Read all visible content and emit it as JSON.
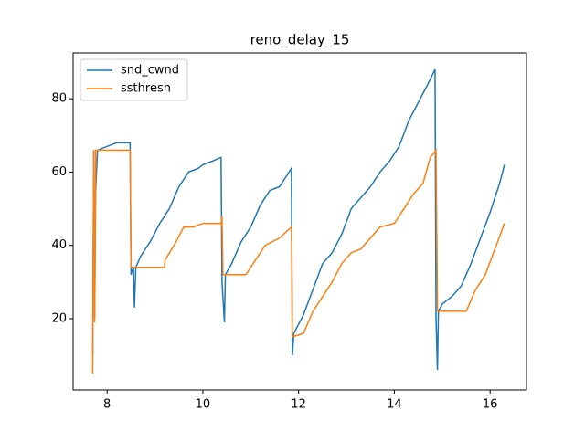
{
  "chart_data": {
    "type": "line",
    "title": "reno_delay_15",
    "series": [
      {
        "name": "snd_cwnd",
        "color": "#1f77b4",
        "x": [
          7.7,
          7.72,
          7.74,
          7.76,
          7.8,
          8.0,
          8.2,
          8.48,
          8.5,
          8.55,
          8.57,
          8.6,
          8.7,
          8.9,
          9.1,
          9.3,
          9.5,
          9.7,
          9.9,
          10.0,
          10.2,
          10.38,
          10.4,
          10.45,
          10.47,
          10.6,
          10.8,
          11.0,
          11.2,
          11.4,
          11.6,
          11.85,
          11.87,
          11.9,
          12.1,
          12.3,
          12.5,
          12.7,
          12.9,
          13.1,
          13.3,
          13.5,
          13.7,
          13.9,
          14.1,
          14.3,
          14.5,
          14.7,
          14.85,
          14.87,
          14.9,
          14.92,
          15.0,
          15.2,
          15.4,
          15.6,
          15.8,
          16.0,
          16.2,
          16.3
        ],
        "values": [
          10,
          66,
          20,
          55,
          66,
          67,
          68,
          68,
          32,
          34,
          23,
          34,
          37,
          41,
          46,
          50,
          56,
          60,
          61,
          62,
          63,
          64,
          30,
          19,
          32,
          35,
          41,
          45,
          51,
          55,
          56,
          61,
          10,
          16,
          21,
          28,
          35,
          38,
          43,
          50,
          53,
          56,
          60,
          63,
          67,
          74,
          79,
          84,
          88,
          20,
          6,
          22,
          24,
          26,
          29,
          35,
          42,
          49,
          57,
          62
        ]
      },
      {
        "name": "ssthresh",
        "color": "#ff7f0e",
        "x": [
          7.7,
          7.72,
          7.74,
          7.76,
          8.48,
          8.5,
          9.2,
          9.21,
          9.4,
          9.6,
          9.8,
          10.0,
          10.38,
          10.4,
          10.42,
          10.9,
          11.1,
          11.3,
          11.6,
          11.85,
          11.87,
          12.1,
          12.3,
          12.5,
          12.7,
          12.9,
          13.1,
          13.3,
          13.5,
          13.7,
          14.0,
          14.2,
          14.4,
          14.6,
          14.75,
          14.87,
          14.9,
          15.5,
          15.7,
          15.9,
          16.1,
          16.3
        ],
        "values": [
          5,
          66,
          19,
          66,
          66,
          34,
          34,
          36,
          40,
          45,
          45,
          46,
          46,
          48,
          32,
          32,
          36,
          40,
          42,
          45,
          15,
          16,
          22,
          26,
          30,
          35,
          38,
          39,
          42,
          45,
          46,
          50,
          54,
          57,
          64,
          66,
          22,
          22,
          28,
          32,
          39,
          46
        ]
      }
    ],
    "xlim": [
      7.29,
      16.76
    ],
    "ylim": [
      0.55,
      92.5
    ],
    "xticks": [
      8,
      10,
      12,
      14,
      16
    ],
    "yticks": [
      20,
      40,
      60,
      80
    ],
    "grid": false,
    "legend": "upper left"
  }
}
